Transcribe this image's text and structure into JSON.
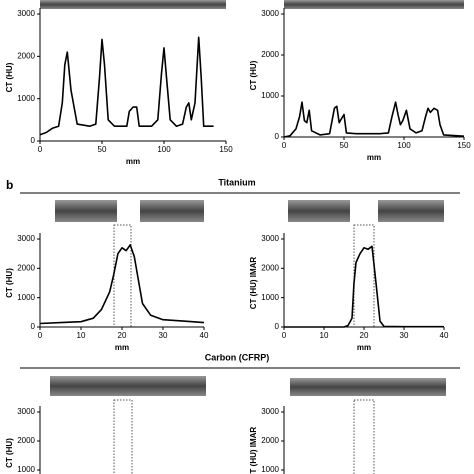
{
  "figure": {
    "panel_label": "b",
    "section_titles": [
      "Titanium",
      "Carbon (CFRP)"
    ]
  },
  "chart_data": [
    {
      "type": "line",
      "x_label": "mm",
      "y_label": "CT (HU)",
      "xlim": [
        0,
        150
      ],
      "ylim": [
        0,
        3000
      ],
      "xticks": [
        0,
        50,
        100,
        150
      ],
      "yticks": [
        0,
        1000,
        2000,
        3000
      ],
      "x": [
        0,
        5,
        10,
        15,
        18,
        20,
        22,
        25,
        30,
        40,
        45,
        48,
        50,
        52,
        55,
        60,
        70,
        72,
        75,
        78,
        80,
        85,
        90,
        95,
        98,
        100,
        102,
        105,
        110,
        115,
        118,
        120,
        122,
        125,
        128,
        130,
        132,
        140
      ],
      "series": [
        {
          "color": "#000000",
          "values": [
            150,
            200,
            300,
            350,
            900,
            1800,
            2100,
            1200,
            400,
            350,
            400,
            1500,
            2400,
            1800,
            500,
            350,
            350,
            700,
            800,
            800,
            350,
            350,
            350,
            500,
            1600,
            2200,
            1500,
            500,
            350,
            400,
            800,
            900,
            500,
            900,
            2450,
            1500,
            350,
            350
          ]
        }
      ]
    },
    {
      "type": "line",
      "x_label": "mm",
      "y_label": "CT (HU)",
      "xlim": [
        0,
        150
      ],
      "ylim": [
        0,
        3000
      ],
      "xticks": [
        0,
        50,
        100,
        150
      ],
      "yticks": [
        0,
        1000,
        2000,
        3000
      ],
      "x": [
        0,
        5,
        10,
        13,
        15,
        17,
        19,
        21,
        23,
        30,
        38,
        42,
        44,
        46,
        48,
        50,
        52,
        60,
        70,
        80,
        87,
        90,
        93,
        95,
        97,
        99,
        102,
        105,
        110,
        115,
        118,
        120,
        122,
        125,
        128,
        130,
        133,
        150
      ],
      "series": [
        {
          "color": "#000000",
          "values": [
            0,
            30,
            200,
            500,
            850,
            400,
            350,
            650,
            150,
            50,
            80,
            700,
            750,
            350,
            450,
            550,
            100,
            80,
            80,
            80,
            100,
            500,
            850,
            550,
            300,
            400,
            650,
            200,
            100,
            150,
            500,
            700,
            600,
            700,
            650,
            300,
            50,
            20
          ]
        }
      ]
    },
    {
      "type": "line",
      "x_label": "mm",
      "y_label": "CT (HU)",
      "xlim": [
        0,
        40
      ],
      "ylim": [
        0,
        3000
      ],
      "xticks": [
        0,
        10,
        20,
        30,
        40
      ],
      "yticks": [
        0,
        1000,
        2000,
        3000
      ],
      "x": [
        0,
        5,
        10,
        13,
        15,
        17,
        18,
        19,
        20,
        21,
        22,
        23,
        24,
        25,
        27,
        30,
        35,
        40
      ],
      "series": [
        {
          "color": "#000000",
          "values": [
            120,
            150,
            180,
            300,
            600,
            1200,
            1800,
            2500,
            2700,
            2600,
            2800,
            2400,
            1600,
            800,
            400,
            250,
            200,
            150
          ]
        }
      ]
    },
    {
      "type": "line",
      "x_label": "mm",
      "y_label": "CT (HU) IMAR",
      "xlim": [
        0,
        40
      ],
      "ylim": [
        0,
        3000
      ],
      "xticks": [
        0,
        10,
        20,
        30,
        40
      ],
      "yticks": [
        0,
        1000,
        2000,
        3000
      ],
      "x": [
        0,
        10,
        15,
        16,
        17,
        17.5,
        18,
        19,
        20,
        21,
        22,
        23,
        24,
        25,
        30,
        40
      ],
      "series": [
        {
          "color": "#000000",
          "values": [
            0,
            0,
            0,
            50,
            300,
            1500,
            2200,
            2500,
            2700,
            2650,
            2750,
            1500,
            200,
            20,
            10,
            10
          ]
        }
      ]
    },
    {
      "type": "line",
      "y_label": "CT (HU)",
      "ylim": [
        0,
        3000
      ],
      "yticks": [
        1000,
        2000,
        3000
      ]
    },
    {
      "type": "line",
      "y_label": "CT (HU) IMAR",
      "ylim": [
        0,
        3000
      ],
      "yticks": [
        1000,
        2000,
        3000
      ]
    }
  ]
}
